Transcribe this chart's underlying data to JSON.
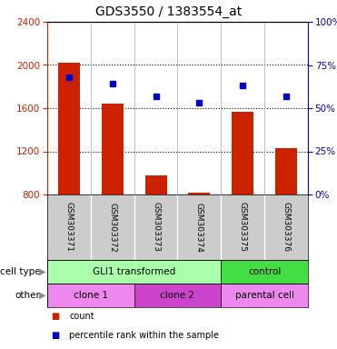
{
  "title": "GDS3550 / 1383554_at",
  "samples": [
    "GSM303371",
    "GSM303372",
    "GSM303373",
    "GSM303374",
    "GSM303375",
    "GSM303376"
  ],
  "counts": [
    2020,
    1640,
    980,
    820,
    1570,
    1230
  ],
  "percentile_ranks": [
    68,
    64,
    57,
    53,
    63,
    57
  ],
  "ylim_left": [
    800,
    2400
  ],
  "ylim_right": [
    0,
    100
  ],
  "yticks_left": [
    800,
    1200,
    1600,
    2000,
    2400
  ],
  "yticks_right": [
    0,
    25,
    50,
    75,
    100
  ],
  "bar_color": "#cc2200",
  "dot_color": "#0000cc",
  "bar_width": 0.5,
  "axis_label_color_left": "#cc2200",
  "axis_label_color_right": "#0000cc",
  "background_color": "#ffffff",
  "plot_bg_color": "#ffffff",
  "sample_area_color": "#cccccc",
  "cell_type_gli_color": "#aaffaa",
  "cell_type_ctrl_color": "#44dd44",
  "other_clone1_color": "#ee88ee",
  "other_clone2_color": "#cc44cc",
  "other_parental_color": "#ee88ee"
}
